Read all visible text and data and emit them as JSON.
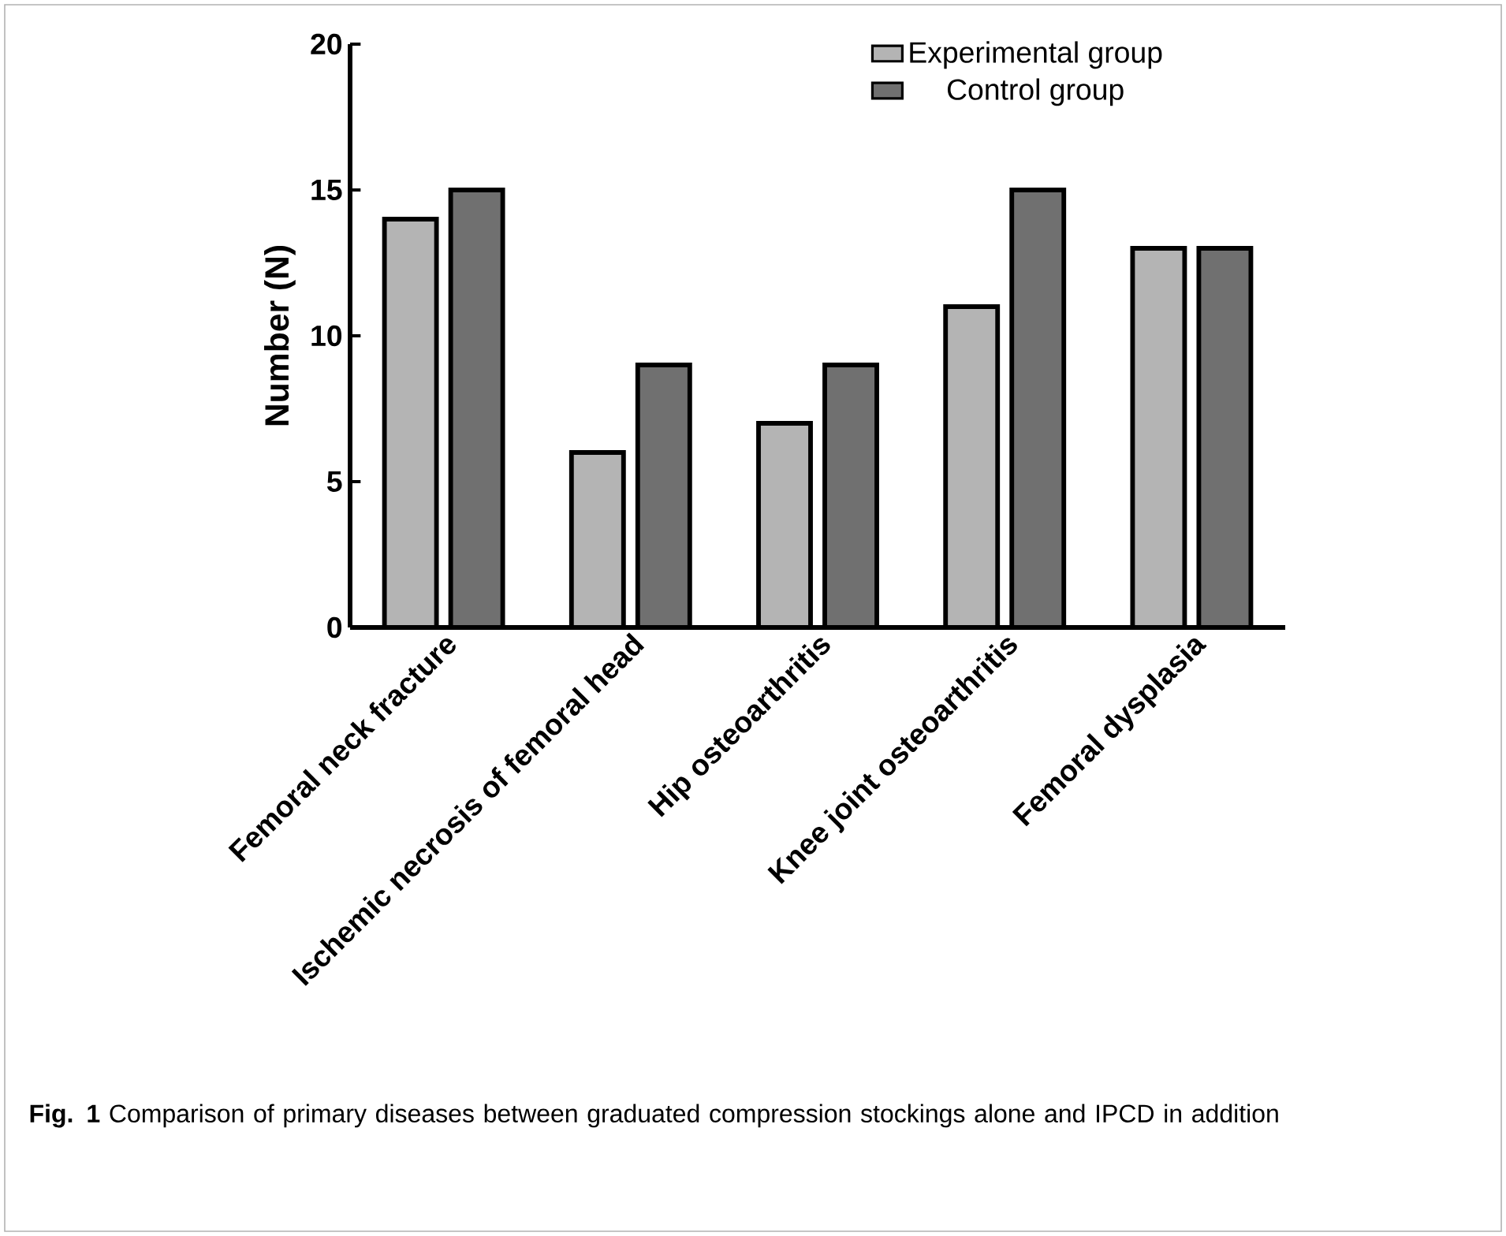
{
  "chart_data": {
    "type": "bar",
    "ylabel": "Number (N)",
    "categories": [
      "Femoral neck fracture",
      "Ischemic necrosis of femoral head",
      "Hip osteoarthritis",
      "Knee joint osteoarthritis",
      "Femoral dysplasia"
    ],
    "series": [
      {
        "name": "Experimental group",
        "color": "#b4b4b4",
        "values": [
          14,
          6,
          7,
          11,
          13
        ]
      },
      {
        "name": "Control group",
        "color": "#707070",
        "values": [
          15,
          9,
          9,
          15,
          13
        ]
      }
    ],
    "ylim": [
      0,
      20
    ],
    "yticks": [
      0,
      5,
      10,
      15,
      20
    ],
    "grid": false,
    "legend": "top right",
    "annotations": [
      "**Fig. 1** Comparison of primary diseases between graduated compression stockings alone and IPCD in addition"
    ]
  }
}
